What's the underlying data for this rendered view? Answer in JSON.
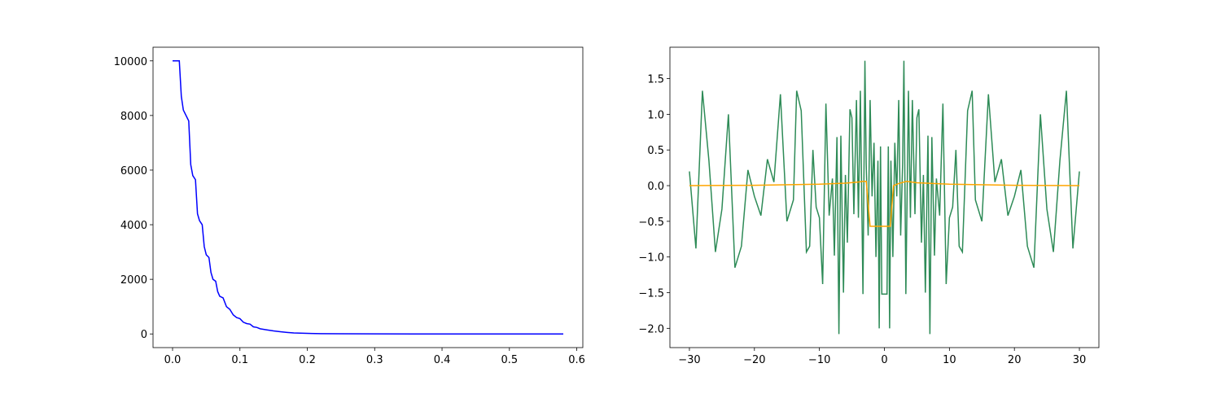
{
  "chart_data": [
    {
      "type": "line",
      "xlim": [
        -0.029,
        0.609
      ],
      "ylim": [
        -500,
        10500
      ],
      "xticks": [
        {
          "value": 0,
          "label": "0.0"
        },
        0.1,
        0.2,
        0.3,
        0.4,
        0.5,
        0.6
      ],
      "yticks": [
        0,
        2000,
        4000,
        6000,
        8000,
        10000
      ],
      "series": [
        {
          "color": "#0000ff",
          "x": [
            0,
            0.01,
            0.013,
            0.016,
            0.02,
            0.024,
            0.027,
            0.03,
            0.034,
            0.037,
            0.04,
            0.044,
            0.047,
            0.05,
            0.054,
            0.057,
            0.06,
            0.064,
            0.067,
            0.07,
            0.075,
            0.08,
            0.085,
            0.09,
            0.095,
            0.1,
            0.105,
            0.11,
            0.115,
            0.12,
            0.125,
            0.13,
            0.14,
            0.15,
            0.16,
            0.17,
            0.18,
            0.2,
            0.22,
            0.25,
            0.3,
            0.4,
            0.5,
            0.58
          ],
          "values": [
            10000,
            10000,
            8700,
            8200,
            8000,
            7800,
            6200,
            5800,
            5650,
            4400,
            4150,
            4000,
            3200,
            2900,
            2800,
            2250,
            2000,
            1930,
            1550,
            1380,
            1320,
            1000,
            900,
            700,
            600,
            560,
            430,
            380,
            360,
            260,
            240,
            190,
            150,
            110,
            80,
            55,
            35,
            20,
            12,
            6,
            2,
            0.5,
            0.1,
            0
          ]
        }
      ]
    },
    {
      "type": "line",
      "xlim": [
        -33,
        33
      ],
      "ylim": [
        -2.27,
        1.94
      ],
      "xticks": [
        {
          "value": -30,
          "label": "−30"
        },
        {
          "value": -20,
          "label": "−20"
        },
        {
          "value": -10,
          "label": "−10"
        },
        0,
        10,
        20,
        30
      ],
      "yticks": [
        {
          "value": -2,
          "label": "−2.0"
        },
        {
          "value": -1.5,
          "label": "−1.5"
        },
        {
          "value": -1,
          "label": "−1.0"
        },
        {
          "value": -0.5,
          "label": "−0.5"
        },
        {
          "value": 0,
          "label": "0.0"
        },
        0.5,
        {
          "value": 1,
          "label": "1.0"
        },
        1.5
      ],
      "series": [
        {
          "color": "#2e8b57",
          "x": [
            -30,
            -29,
            -28,
            -27,
            -26,
            -25,
            -24,
            -23,
            -22,
            -21,
            -20,
            -19,
            -18,
            -17,
            -16,
            -15,
            -14,
            -13.5,
            -12.8,
            -12,
            -11.5,
            -11,
            -10.5,
            -10,
            -9.5,
            -9,
            -8.5,
            -8,
            -7.7,
            -7.3,
            -7,
            -6.7,
            -6.3,
            -6,
            -5.7,
            -5.3,
            -5,
            -4.7,
            -4.3,
            -4,
            -3.7,
            -3.3,
            -3,
            -2.8,
            -2.5,
            -2.2,
            -1.9,
            -1.6,
            -1.3,
            -1,
            -0.8,
            -0.6,
            -0.4,
            0,
            0.4,
            0.6,
            0.8,
            1,
            1.3,
            1.6,
            1.9,
            2.2,
            2.5,
            2.8,
            3,
            3.3,
            3.7,
            4,
            4.3,
            4.7,
            5,
            5.3,
            5.7,
            6,
            6.3,
            6.7,
            7,
            7.3,
            7.7,
            8,
            8.5,
            9,
            9.5,
            10,
            10.5,
            11,
            11.5,
            12,
            12.8,
            13.5,
            14,
            15,
            16,
            17,
            18,
            19,
            20,
            21,
            22,
            23,
            24,
            25,
            26,
            27,
            28,
            29,
            30
          ],
          "values": [
            0.2,
            -0.88,
            1.33,
            0.35,
            -0.93,
            -0.33,
            1.0,
            -1.15,
            -0.85,
            0.22,
            -0.15,
            -0.42,
            0.37,
            0.05,
            1.28,
            -0.5,
            -0.2,
            1.33,
            1.05,
            -0.93,
            -0.85,
            0.5,
            -0.3,
            -0.45,
            -1.38,
            1.15,
            -0.42,
            0.1,
            -0.98,
            0.68,
            -2.08,
            0.7,
            -1.5,
            0.15,
            -0.8,
            1.07,
            0.95,
            -0.4,
            1.2,
            -0.45,
            1.33,
            -1.52,
            1.75,
            0.3,
            -0.7,
            1.2,
            -0.15,
            0.6,
            -1.0,
            0.35,
            -2.0,
            0.55,
            -1.52,
            -1.52,
            -1.52,
            0.55,
            -2.0,
            0.35,
            -1.0,
            0.6,
            -0.15,
            1.2,
            -0.7,
            0.3,
            1.75,
            -1.52,
            1.33,
            -0.45,
            1.2,
            -0.4,
            0.95,
            1.07,
            -0.8,
            0.15,
            -1.5,
            0.7,
            -2.08,
            0.68,
            -0.98,
            0.1,
            -0.42,
            1.15,
            -1.38,
            -0.45,
            -0.3,
            0.5,
            -0.85,
            -0.93,
            1.05,
            1.33,
            -0.2,
            -0.5,
            1.28,
            0.05,
            0.37,
            -0.42,
            -0.15,
            0.22,
            -0.85,
            -1.15,
            1.0,
            -0.33,
            -0.93,
            0.35,
            1.33,
            -0.88,
            0.2
          ]
        },
        {
          "color": "#ffa500",
          "x": [
            -30,
            -20,
            -10,
            -6,
            -4,
            -3.3,
            -2.8,
            -2.2,
            0.9,
            1.4,
            2.2,
            3.4,
            5,
            10,
            20,
            30
          ],
          "values": [
            0.0,
            0.005,
            0.02,
            0.035,
            0.05,
            0.06,
            0.06,
            -0.57,
            -0.57,
            0.0,
            0.03,
            0.06,
            0.04,
            0.02,
            0.005,
            0.0
          ]
        }
      ]
    }
  ]
}
